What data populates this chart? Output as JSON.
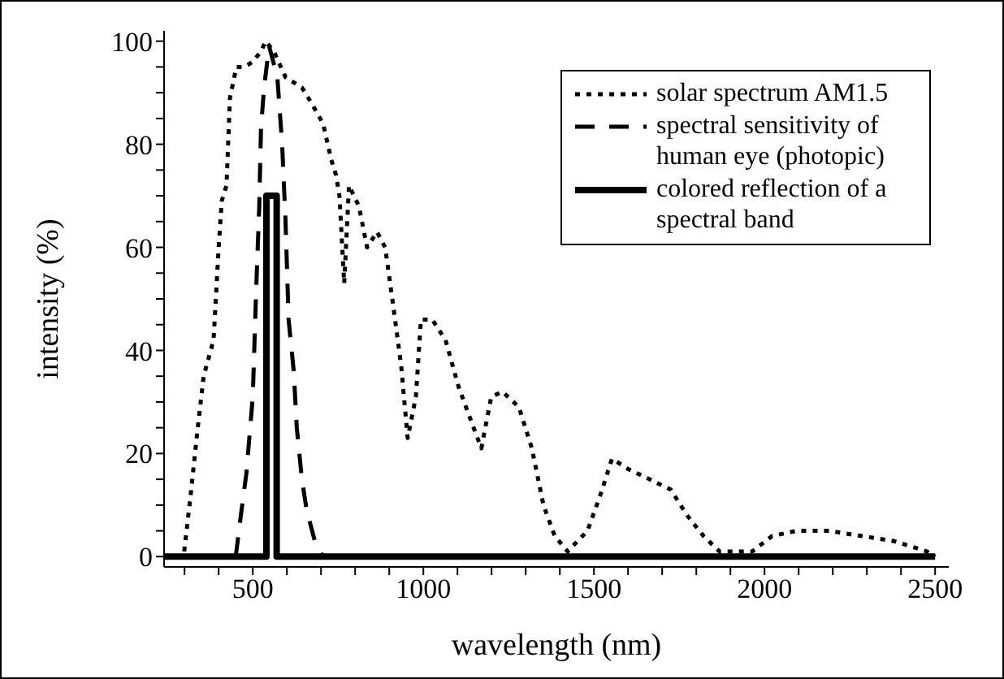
{
  "chart_data": {
    "type": "line",
    "xlabel": "wavelength (nm)",
    "ylabel": "intensity (%)",
    "xlim": [
      240,
      2540
    ],
    "ylim": [
      -2,
      102
    ],
    "xticks": [
      {
        "value": 300,
        "label": null
      },
      {
        "value": 400,
        "label": null
      },
      500,
      {
        "value": 600,
        "label": null
      },
      {
        "value": 700,
        "label": null
      },
      {
        "value": 800,
        "label": null
      },
      {
        "value": 900,
        "label": null
      },
      1000,
      {
        "value": 1100,
        "label": null
      },
      {
        "value": 1200,
        "label": null
      },
      {
        "value": 1300,
        "label": null
      },
      {
        "value": 1400,
        "label": null
      },
      1500,
      {
        "value": 1600,
        "label": null
      },
      {
        "value": 1700,
        "label": null
      },
      {
        "value": 1800,
        "label": null
      },
      {
        "value": 1900,
        "label": null
      },
      2000,
      {
        "value": 2100,
        "label": null
      },
      {
        "value": 2200,
        "label": null
      },
      {
        "value": 2300,
        "label": null
      },
      {
        "value": 2400,
        "label": null
      },
      2500
    ],
    "yticks": [
      0,
      {
        "value": 5,
        "label": null
      },
      {
        "value": 10,
        "label": null
      },
      {
        "value": 15,
        "label": null
      },
      20,
      {
        "value": 25,
        "label": null
      },
      {
        "value": 30,
        "label": null
      },
      {
        "value": 35,
        "label": null
      },
      40,
      {
        "value": 45,
        "label": null
      },
      {
        "value": 50,
        "label": null
      },
      {
        "value": 55,
        "label": null
      },
      60,
      {
        "value": 65,
        "label": null
      },
      {
        "value": 70,
        "label": null
      },
      {
        "value": 75,
        "label": null
      },
      80,
      {
        "value": 85,
        "label": null
      },
      {
        "value": 90,
        "label": null
      },
      {
        "value": 95,
        "label": null
      },
      100
    ],
    "legend": "top right",
    "marker": "none",
    "series": [
      {
        "name": "solar spectrum AM1.5",
        "color": "#000000",
        "line_style": "dotted",
        "x": [
          299,
          318,
          337,
          356,
          385,
          400,
          409,
          423,
          433,
          452,
          476,
          500,
          524,
          538,
          562,
          596,
          644,
          672,
          706,
          730,
          744,
          754,
          768,
          782,
          811,
          835,
          864,
          888,
          911,
          935,
          954,
          978,
          993,
          1026,
          1065,
          1103,
          1136,
          1170,
          1199,
          1232,
          1280,
          1318,
          1352,
          1385,
          1423,
          1481,
          1519,
          1553,
          1600,
          1663,
          1725,
          1773,
          1821,
          1868,
          1964,
          2022,
          2093,
          2189,
          2285,
          2380,
          2476,
          2500
        ],
        "values": [
          1,
          12,
          24,
          35,
          42,
          60,
          69,
          72,
          89,
          95,
          95,
          96,
          98,
          100,
          98,
          93,
          91,
          88,
          84,
          77,
          74,
          70,
          53,
          72,
          68,
          60,
          63,
          60,
          49,
          37,
          23,
          31,
          46,
          46,
          42,
          33,
          27,
          21,
          31,
          32,
          29,
          21,
          10,
          4,
          1,
          5,
          12,
          19,
          17,
          15,
          13,
          8,
          4,
          1,
          1,
          4,
          5,
          5,
          4,
          3,
          1,
          0
        ]
      },
      {
        "name": "spectral sensitivity of human eye (photopic)",
        "color": "#000000",
        "line_style": "dashed",
        "x": [
          450,
          467,
          481,
          500,
          510,
          519,
          524,
          533,
          548,
          572,
          586,
          596,
          605,
          620,
          629,
          644,
          658,
          682,
          706
        ],
        "values": [
          0,
          9,
          16,
          31,
          52,
          68,
          83,
          91,
          99,
          93,
          80,
          65,
          46,
          36,
          25,
          15,
          9,
          3,
          0
        ]
      },
      {
        "name": "colored reflection of a spectral band",
        "color": "#000000",
        "line_style": "solid",
        "x": [
          240,
          540,
          540,
          570,
          570,
          2500
        ],
        "values": [
          0,
          0,
          70,
          70,
          0,
          0
        ]
      }
    ]
  }
}
